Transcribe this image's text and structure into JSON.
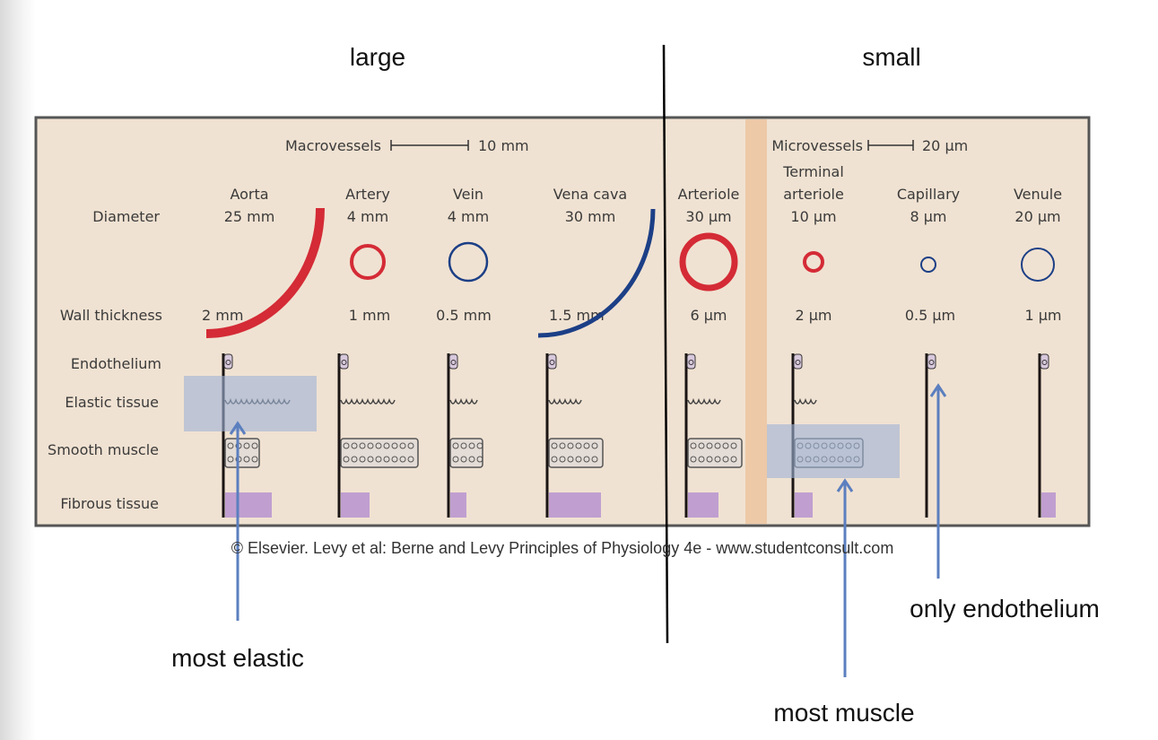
{
  "slide": {
    "label_large": "large",
    "label_small": "small",
    "caption": "© Elsevier. Levy et al: Berne and Levy Principles of Physiology 4e - www.studentconsult.com",
    "annotations": {
      "most_elastic": "most elastic",
      "most_muscle": "most muscle",
      "only_endothelium": "only endothelium"
    },
    "highlight_color": "#9fb3d6",
    "arrow_color": "#5b7fbf"
  },
  "figure": {
    "macro_scale": {
      "label": "Macrovessels",
      "value": "10 mm"
    },
    "micro_scale": {
      "label": "Microvessels",
      "value": "20 µm"
    },
    "row_labels": {
      "diameter": "Diameter",
      "wall_thickness": "Wall thickness",
      "endothelium": "Endothelium",
      "elastic": "Elastic tissue",
      "smooth_muscle": "Smooth muscle",
      "fibrous": "Fibrous tissue"
    },
    "colors": {
      "artery": "#d42b36",
      "vein": "#1c3f86",
      "background": "#f0e2d2",
      "divider": "#edc9a8"
    },
    "vessels": [
      {
        "name": "Aorta",
        "name2": "",
        "diameter": "25 mm",
        "wall": "2 mm",
        "kind": "artery",
        "layers": [
          "endothelium",
          "elastic",
          "smooth_muscle",
          "fibrous"
        ]
      },
      {
        "name": "Artery",
        "name2": "",
        "diameter": "4 mm",
        "wall": "1 mm",
        "kind": "artery",
        "layers": [
          "endothelium",
          "elastic",
          "smooth_muscle",
          "fibrous"
        ]
      },
      {
        "name": "Vein",
        "name2": "",
        "diameter": "4 mm",
        "wall": "0.5 mm",
        "kind": "vein",
        "layers": [
          "endothelium",
          "elastic",
          "smooth_muscle",
          "fibrous"
        ]
      },
      {
        "name": "Vena cava",
        "name2": "",
        "diameter": "30 mm",
        "wall": "1.5 mm",
        "kind": "vein",
        "layers": [
          "endothelium",
          "elastic",
          "smooth_muscle",
          "fibrous"
        ]
      },
      {
        "name": "Arteriole",
        "name2": "",
        "diameter": "30 µm",
        "wall": "6 µm",
        "kind": "artery",
        "layers": [
          "endothelium",
          "elastic",
          "smooth_muscle",
          "fibrous"
        ]
      },
      {
        "name": "Terminal",
        "name2": "arteriole",
        "diameter": "10 µm",
        "wall": "2 µm",
        "kind": "artery",
        "layers": [
          "endothelium",
          "elastic",
          "smooth_muscle",
          "fibrous"
        ]
      },
      {
        "name": "Capillary",
        "name2": "",
        "diameter": "8 µm",
        "wall": "0.5 µm",
        "kind": "vein",
        "layers": [
          "endothelium"
        ]
      },
      {
        "name": "Venule",
        "name2": "",
        "diameter": "20 µm",
        "wall": "1 µm",
        "kind": "vein",
        "layers": [
          "endothelium",
          "fibrous"
        ]
      }
    ]
  }
}
